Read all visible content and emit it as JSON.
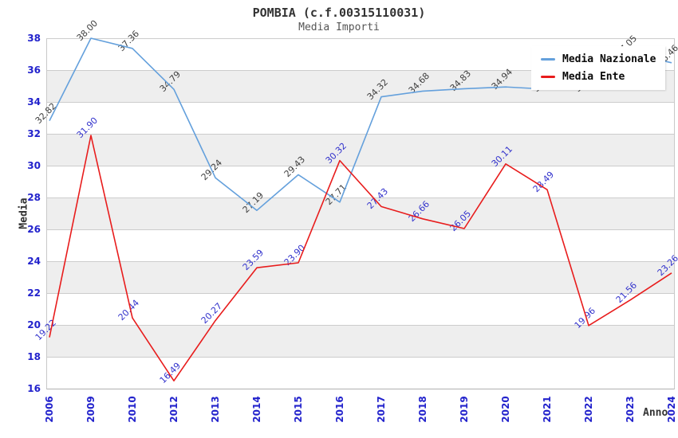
{
  "title": "POMBIA (c.f.00315110031)",
  "subtitle": "Media Importi",
  "axes": {
    "y_title": "Media",
    "x_title": "Anno",
    "y_ticks": [
      38,
      36,
      34,
      32,
      30,
      28,
      26,
      24,
      22,
      20,
      18,
      16
    ],
    "tick_color": "#2222cc"
  },
  "legend": {
    "position": "top-right",
    "items": [
      {
        "label": "Media Nazionale",
        "color": "#64a0dc"
      },
      {
        "label": "Media Ente",
        "color": "#e81c1c"
      }
    ]
  },
  "colors": {
    "band_gray": "#eeeeee",
    "grid": "#cccccc",
    "title": "#333333",
    "subtitle": "#555555",
    "national_line": "#64a0dc",
    "ente_line": "#e81c1c",
    "national_label": "#404040",
    "ente_label": "#3333cc"
  },
  "chart_data": {
    "type": "line",
    "title": "POMBIA (c.f.00315110031)",
    "subtitle": "Media Importi",
    "xlabel": "Anno",
    "ylabel": "Media",
    "x": [
      "2006",
      "2009",
      "2010",
      "2012",
      "2013",
      "2014",
      "2015",
      "2016",
      "2017",
      "2018",
      "2019",
      "2020",
      "2021",
      "2022",
      "2023",
      "2024"
    ],
    "series": [
      {
        "name": "Media Nazionale",
        "color": "#64a0dc",
        "label_color": "#404040",
        "values": [
          32.82,
          38.0,
          37.36,
          34.79,
          29.24,
          27.19,
          29.43,
          27.71,
          34.32,
          34.68,
          34.83,
          34.94,
          34.8,
          34.8,
          37.05,
          36.46
        ]
      },
      {
        "name": "Media Ente",
        "color": "#e81c1c",
        "label_color": "#3333cc",
        "values": [
          19.22,
          31.9,
          20.44,
          16.49,
          20.27,
          23.59,
          23.9,
          30.32,
          27.43,
          26.66,
          26.05,
          30.11,
          28.49,
          19.96,
          21.56,
          23.26
        ]
      }
    ],
    "ylim": [
      16,
      38
    ],
    "ytick_step": 2,
    "grid": "horizontal-bands",
    "data_labels": "shown, rotated 45deg",
    "legend_position": "top-right"
  }
}
